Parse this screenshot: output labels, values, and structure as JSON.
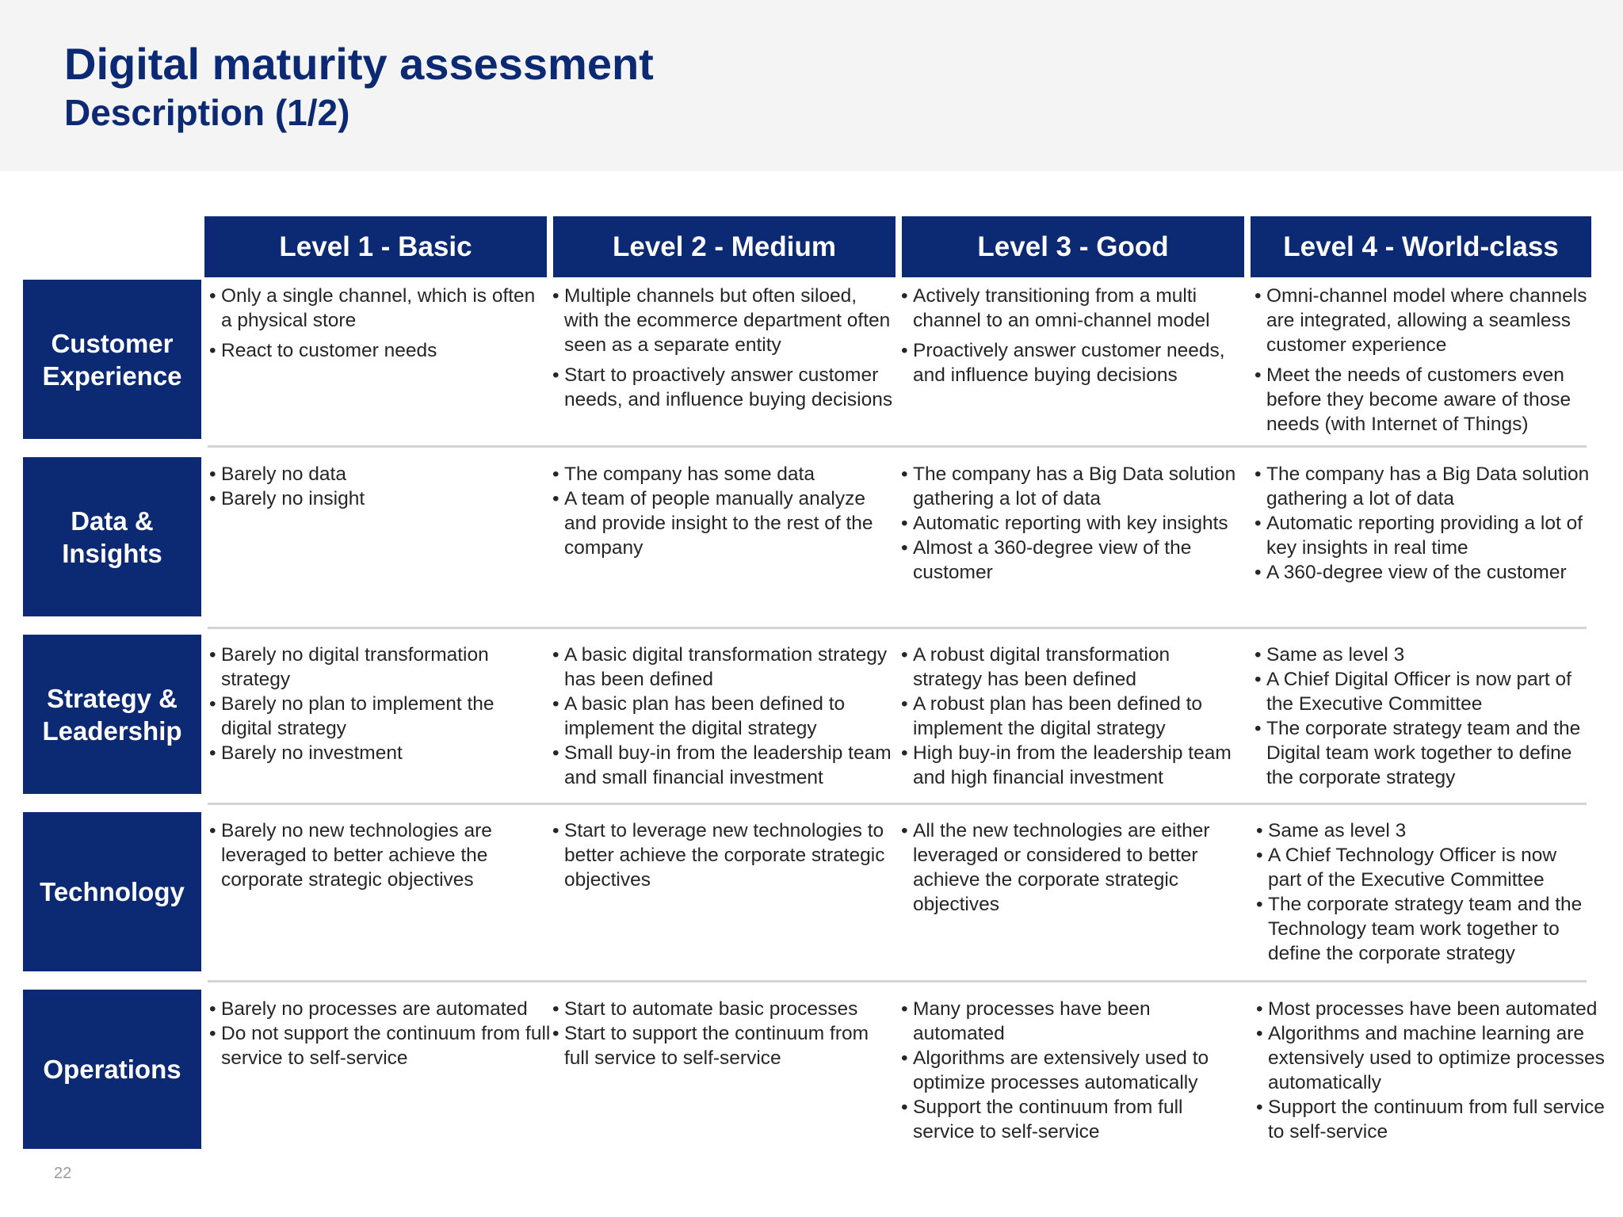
{
  "title": "Digital maturity assessment",
  "subtitle": "Description (1/2)",
  "page_number": "22",
  "colors": {
    "navy": "#0c2a73",
    "header_band": "#f4f4f5",
    "divider": "#d3d3d3"
  },
  "levels": [
    "Level 1 - Basic",
    "Level 2 - Medium",
    "Level 3 - Good",
    "Level 4 - World-class"
  ],
  "rows": [
    {
      "label_lines": [
        "Customer",
        "Experience"
      ],
      "cells": [
        [
          "Only a single channel, which is often a physical store",
          "React to customer needs"
        ],
        [
          "Multiple channels but often siloed, with the ecommerce department often seen as a separate entity",
          "Start to proactively answer customer needs, and influence buying decisions"
        ],
        [
          "Actively transitioning from a multi channel to an omni-channel model",
          "Proactively answer customer needs, and influence buying decisions"
        ],
        [
          "Omni-channel model where channels are integrated, allowing a seamless customer experience",
          "Meet the needs of customers even before they become aware of those needs (with Internet of Things)"
        ]
      ]
    },
    {
      "label_lines": [
        "Data &",
        "Insights"
      ],
      "cells": [
        [
          "Barely no data",
          "Barely no insight"
        ],
        [
          "The company has some data",
          "A team of people manually analyze and provide insight to the rest of the company"
        ],
        [
          "The company has a Big Data solution gathering a lot of data",
          "Automatic reporting with key insights",
          "Almost a 360-degree view of the customer"
        ],
        [
          "The company has a Big Data solution gathering a lot of data",
          "Automatic reporting providing a lot of key insights in real time",
          "A 360-degree view of the customer"
        ]
      ]
    },
    {
      "label_lines": [
        "Strategy &",
        "Leadership"
      ],
      "cells": [
        [
          "Barely no digital transformation strategy",
          "Barely no plan to implement the digital strategy",
          "Barely no investment"
        ],
        [
          "A basic digital transformation strategy has been defined",
          "A basic plan has been defined to implement the digital strategy",
          "Small buy-in from the leadership team and small financial investment"
        ],
        [
          "A robust digital transformation strategy has been defined",
          "A robust plan has been defined to implement the digital strategy",
          "High buy-in from the leadership team and high financial investment"
        ],
        [
          "Same as level 3",
          "A Chief Digital Officer is now part of the Executive Committee",
          "The corporate strategy team and the Digital team work together to define the corporate strategy"
        ]
      ]
    },
    {
      "label_lines": [
        "Technology"
      ],
      "cells": [
        [
          "Barely no new technologies are leveraged to better achieve the corporate strategic objectives"
        ],
        [
          "Start to leverage new technologies to better achieve the corporate strategic objectives"
        ],
        [
          "All the new technologies are either leveraged or considered to better achieve the corporate strategic objectives"
        ],
        [
          "Same as level 3",
          "A Chief Technology Officer is now part of the Executive Committee",
          "The corporate strategy team and the Technology team work together to define the corporate strategy"
        ]
      ]
    },
    {
      "label_lines": [
        "Operations"
      ],
      "cells": [
        [
          "Barely no processes are automated",
          "Do not support the continuum from full service to self-service"
        ],
        [
          "Start to automate basic processes",
          "Start to support the continuum from full service to self-service"
        ],
        [
          "Many processes have been automated",
          "Algorithms are extensively used to optimize processes automatically",
          "Support the continuum from full service to self-service"
        ],
        [
          "Most processes have been automated",
          "Algorithms and machine learning are extensively used to optimize processes automatically",
          "Support the continuum from full service to self-service"
        ]
      ]
    }
  ]
}
